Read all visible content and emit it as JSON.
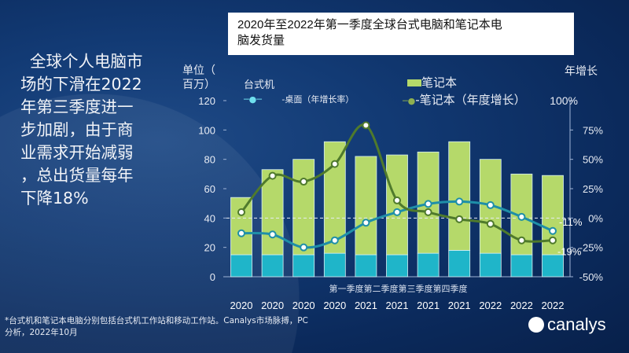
{
  "headline": [
    "全球个人电脑市",
    "场的下滑在2022",
    "年第三季度进一",
    "步加剧，由于商",
    "业需求开始减弱",
    "，总出货量每年",
    "下降18%"
  ],
  "title_lines": [
    "2020年至2022年第一季度全球台式电脑和笔记本电",
    "脑发货量"
  ],
  "unit_label": [
    "单位（",
    "百万）"
  ],
  "right_axis_label": "年增长",
  "footer": [
    "*台式机和笔记本电脑分别包括台式机工作站和移动工作站。Canalys市场脉搏，PC",
    "分析，2022年10月"
  ],
  "logo_text": "canalys",
  "colors": {
    "desktop_bar": "#1fb5c9",
    "notebook_bar": "#b5d96a",
    "desktop_line": "#1f8fa8",
    "notebook_line": "#4f7a2c"
  },
  "chart_data": {
    "type": "bar+line",
    "categories": [
      "2020",
      "2020",
      "2020",
      "2020",
      "2021",
      "2021",
      "2021",
      "2021",
      "2022",
      "2022",
      "2022"
    ],
    "xlabel": "第一季度第二季度第三季度第四季度",
    "ylim": [
      0,
      120
    ],
    "yticks": [
      "0",
      "20",
      "40",
      "60",
      "80",
      "100",
      "120"
    ],
    "y2lim": [
      -50,
      100
    ],
    "y2ticks": [
      "-50%",
      "-25%",
      "0%",
      "25%",
      "50%",
      "75%",
      "100%"
    ],
    "stacked": true,
    "bar_series": [
      {
        "name": "台式机",
        "values": [
          15,
          15,
          15,
          16,
          15,
          15,
          16,
          18,
          16,
          15,
          15
        ]
      },
      {
        "name": "笔记本",
        "values": [
          39,
          58,
          65,
          76,
          67,
          68,
          69,
          74,
          64,
          55,
          54
        ]
      }
    ],
    "line_series": [
      {
        "name": "-桌面（年增长率）",
        "values": [
          -13,
          -14,
          -25,
          -19,
          -4,
          5,
          12,
          14,
          11,
          1,
          -11
        ]
      },
      {
        "name": "-笔记本（年度增长）",
        "values": [
          5,
          36,
          31,
          46,
          79,
          15,
          5,
          -1,
          -5,
          -19,
          -19
        ]
      }
    ],
    "annotations": [
      "-11%",
      "-19%"
    ],
    "grid": false,
    "zero_line": "dashed",
    "legend_position": "top"
  }
}
